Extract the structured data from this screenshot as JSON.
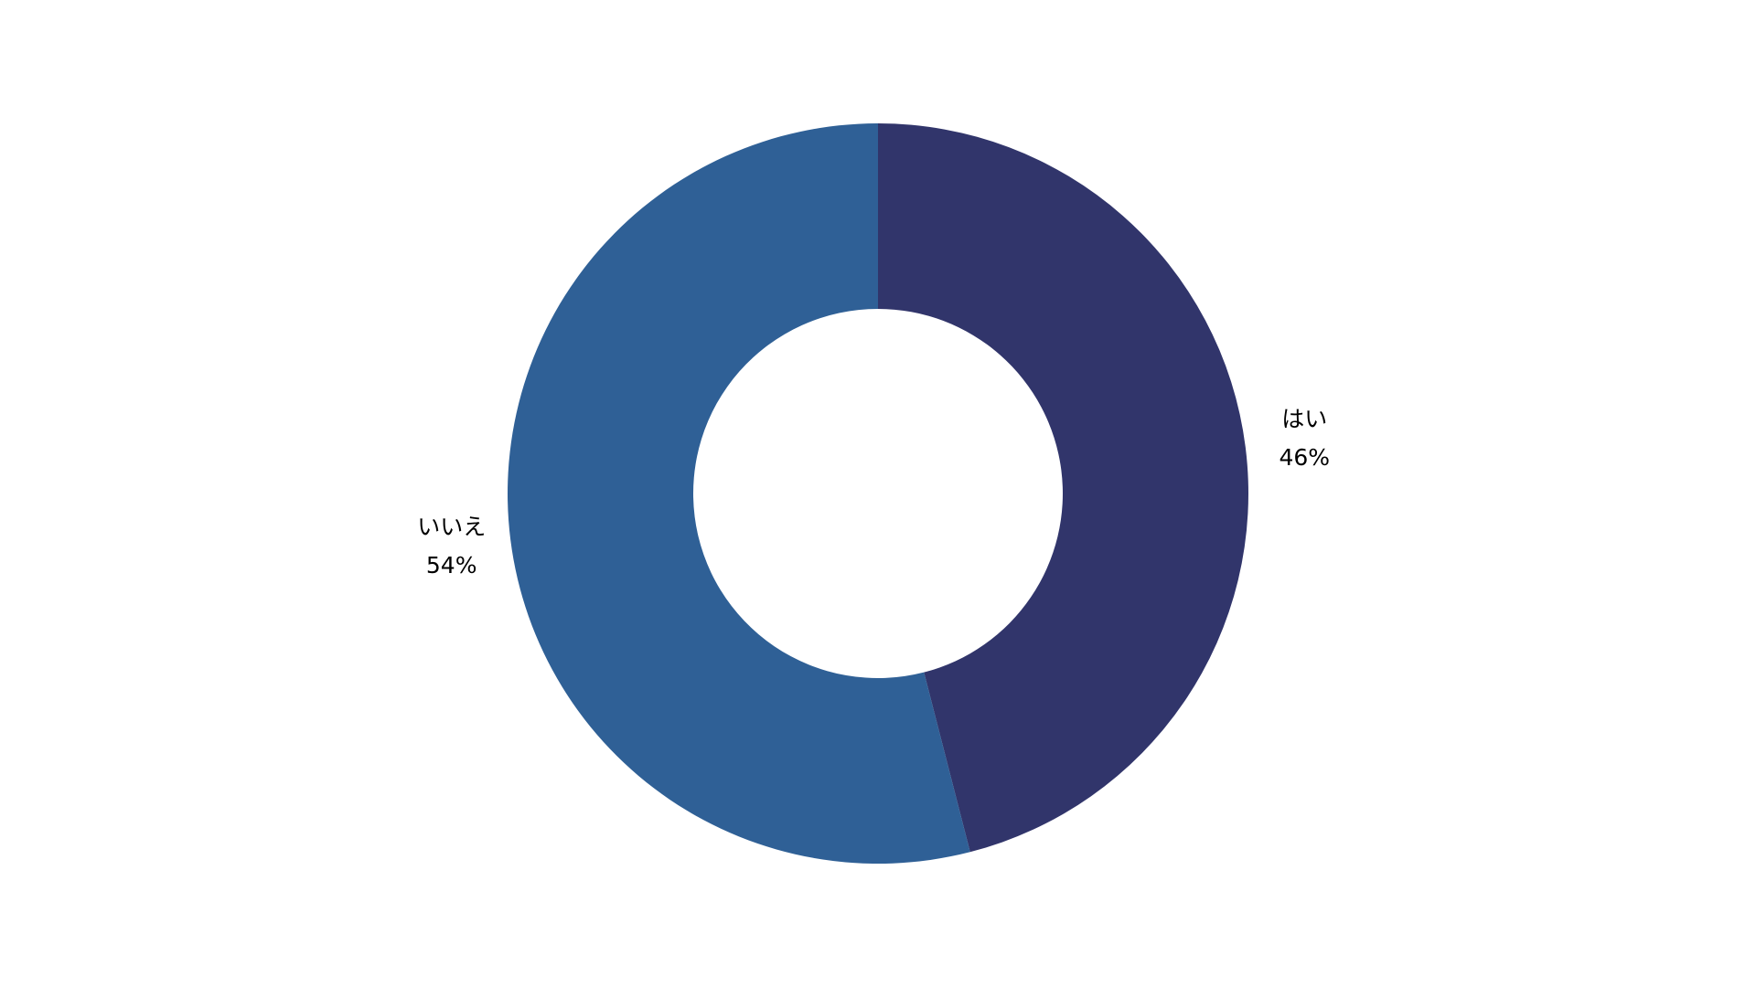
{
  "chart_data": {
    "type": "donut",
    "categories": [
      "はい",
      "いいえ"
    ],
    "values": [
      46,
      54
    ],
    "value_labels": [
      "46%",
      "54%"
    ],
    "colors": [
      "#31356b",
      "#2f6096"
    ]
  }
}
